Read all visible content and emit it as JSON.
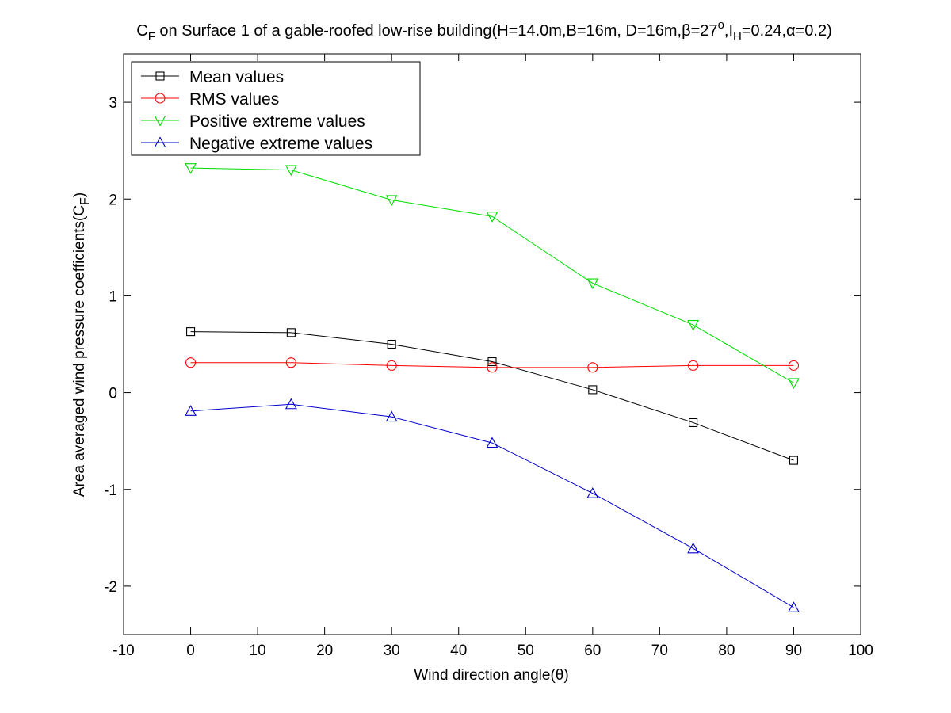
{
  "chart_data": {
    "type": "line",
    "title_parts": {
      "c": "C",
      "c_sub": "F",
      "main": " on Surface 1 of a gable-roofed low-rise building(H=14.0m,B=16m, D=16m,",
      "beta": "β",
      "beta_val": "=27",
      "deg": "o",
      "comma_i": ",I",
      "i_sub": "H",
      "i_val": "=0.24,",
      "alpha": "α",
      "alpha_val": "=0.2)"
    },
    "xlabel": "Wind direction angle(θ)",
    "ylabel_parts": {
      "main": "Area averaged wind pressure coefficients(C",
      "sub": "F",
      "end": ")"
    },
    "xlim": [
      -10,
      100
    ],
    "ylim": [
      -2.5,
      3.5
    ],
    "xticks": [
      -10,
      0,
      10,
      20,
      30,
      40,
      50,
      60,
      70,
      80,
      90,
      100
    ],
    "yticks": [
      -2,
      -1,
      0,
      1,
      2,
      3
    ],
    "grid": false,
    "legend_position": "top-left",
    "x": [
      0,
      15,
      30,
      45,
      60,
      75,
      90
    ],
    "series": [
      {
        "name": "Mean values",
        "color": "#000000",
        "marker": "square",
        "values": [
          0.63,
          0.62,
          0.5,
          0.32,
          0.03,
          -0.31,
          -0.7
        ]
      },
      {
        "name": "RMS values",
        "color": "#ff0000",
        "marker": "circle",
        "values": [
          0.31,
          0.31,
          0.28,
          0.26,
          0.26,
          0.28,
          0.28
        ]
      },
      {
        "name": "Positive extreme values",
        "color": "#00dd00",
        "marker": "triangle-down",
        "values": [
          2.32,
          2.3,
          1.99,
          1.82,
          1.13,
          0.7,
          0.1
        ]
      },
      {
        "name": "Negative extreme values",
        "color": "#0000cc",
        "marker": "triangle-up",
        "values": [
          -0.19,
          -0.12,
          -0.25,
          -0.52,
          -1.04,
          -1.61,
          -2.22
        ]
      }
    ]
  }
}
